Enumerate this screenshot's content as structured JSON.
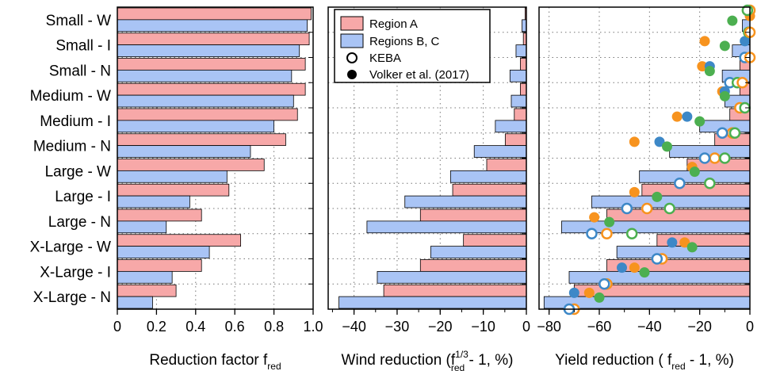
{
  "categories": [
    "Small - W",
    "Small - I",
    "Small - N",
    "Medium - W",
    "Medium - I",
    "Medium - N",
    "Large - W",
    "Large - I",
    "Large - N",
    "X-Large - W",
    "X-Large - I",
    "X-Large - N"
  ],
  "colors": {
    "region_a": "#f7a8a8",
    "regions_bc": "#a9c4f5",
    "keba_orange": "#f7931e",
    "keba_blue": "#3d88c7",
    "keba_green": "#4caf50",
    "edge": "#000000",
    "grid": "#777777"
  },
  "legend": {
    "region_a": "Region A",
    "regions_bc": "Regions B, C",
    "keba": "KEBA",
    "volker": "Volker et al. (2017)"
  },
  "chart_data": [
    {
      "type": "bar",
      "orientation": "horizontal",
      "xlabel": "Reduction factor f",
      "xlabel_sub": "red",
      "xlim": [
        0,
        1.0
      ],
      "ticks": [
        0,
        0.2,
        0.4,
        0.6,
        0.8,
        1.0
      ],
      "tick_labels": [
        "0",
        "0.2",
        "0.4",
        "0.6",
        "0.8",
        "1.0"
      ],
      "series": [
        {
          "name": "Region A",
          "values": [
            0.99,
            0.98,
            0.96,
            0.96,
            0.92,
            0.86,
            0.75,
            0.57,
            0.43,
            0.63,
            0.43,
            0.3
          ]
        },
        {
          "name": "Regions B, C",
          "values": [
            0.97,
            0.93,
            0.89,
            0.9,
            0.8,
            0.68,
            0.56,
            0.37,
            0.25,
            0.47,
            0.28,
            0.18
          ]
        }
      ]
    },
    {
      "type": "bar",
      "orientation": "horizontal",
      "xlabel": "Wind reduction (f",
      "xlabel_sup": "1/3",
      "xlabel_sub": "red",
      "xlabel_tail": " - 1, %)",
      "xlim": [
        -46,
        0
      ],
      "ticks": [
        -40,
        -30,
        -20,
        -10,
        0
      ],
      "tick_labels": [
        "−40",
        "−30",
        "−20",
        "−10",
        "0"
      ],
      "series": [
        {
          "name": "Region A",
          "values": [
            -0.3,
            -0.7,
            -1.4,
            -1.4,
            -2.8,
            -4.9,
            -9.2,
            -17.1,
            -24.6,
            -14.6,
            -24.6,
            -33.1
          ]
        },
        {
          "name": "Regions B, C",
          "values": [
            -1.0,
            -2.4,
            -3.8,
            -3.5,
            -7.2,
            -12.1,
            -17.6,
            -28.2,
            -37.0,
            -22.2,
            -34.6,
            -43.5
          ]
        }
      ]
    },
    {
      "type": "bar",
      "orientation": "horizontal",
      "xlabel": "Yield reduction ( f",
      "xlabel_sub": "red",
      "xlabel_tail": " - 1, %)",
      "xlim": [
        -84,
        0
      ],
      "ticks": [
        -80,
        -60,
        -40,
        -20,
        0
      ],
      "tick_labels": [
        "−80",
        "−60",
        "−40",
        "−20",
        "0"
      ],
      "series": [
        {
          "name": "Region A",
          "values": [
            -1,
            -2,
            -4,
            -4,
            -8,
            -14,
            -25,
            -43,
            -57,
            -37,
            -57,
            -70
          ]
        },
        {
          "name": "Regions B, C",
          "values": [
            -3,
            -7,
            -11,
            -10,
            -20,
            -32,
            -44,
            -63,
            -75,
            -53,
            -72,
            -82
          ]
        }
      ],
      "keba": [
        {
          "row": 0,
          "value": 0,
          "color": "orange"
        },
        {
          "row": 0,
          "value": -1,
          "color": "green"
        },
        {
          "row": 1,
          "value": -0.5,
          "color": "green"
        },
        {
          "row": 1,
          "value": 0,
          "color": "orange"
        },
        {
          "row": 2,
          "value": -2,
          "color": "blue"
        },
        {
          "row": 2,
          "value": 0,
          "color": "orange"
        },
        {
          "row": 3,
          "value": -8,
          "color": "blue"
        },
        {
          "row": 3,
          "value": -5,
          "color": "green"
        },
        {
          "row": 3,
          "value": -3,
          "color": "orange"
        },
        {
          "row": 4,
          "value": -4,
          "color": "orange"
        },
        {
          "row": 4,
          "value": -2,
          "color": "green"
        },
        {
          "row": 5,
          "value": -7,
          "color": "orange"
        },
        {
          "row": 5,
          "value": -11,
          "color": "blue"
        },
        {
          "row": 5,
          "value": -6,
          "color": "green"
        },
        {
          "row": 6,
          "value": -14,
          "color": "orange"
        },
        {
          "row": 6,
          "value": -18,
          "color": "blue"
        },
        {
          "row": 6,
          "value": -10,
          "color": "green"
        },
        {
          "row": 7,
          "value": -28,
          "color": "blue"
        },
        {
          "row": 7,
          "value": -16,
          "color": "green"
        },
        {
          "row": 8,
          "value": -41,
          "color": "orange"
        },
        {
          "row": 8,
          "value": -49,
          "color": "blue"
        },
        {
          "row": 8,
          "value": -32,
          "color": "green"
        },
        {
          "row": 9,
          "value": -57,
          "color": "orange"
        },
        {
          "row": 9,
          "value": -63,
          "color": "blue"
        },
        {
          "row": 9,
          "value": -47,
          "color": "green"
        },
        {
          "row": 10,
          "value": -35,
          "color": "orange"
        },
        {
          "row": 10,
          "value": -37,
          "color": "blue"
        },
        {
          "row": 11,
          "value": -57,
          "color": "orange"
        },
        {
          "row": 11,
          "value": -58,
          "color": "blue"
        },
        {
          "row": 12,
          "value": -70,
          "color": "orange"
        },
        {
          "row": 12,
          "value": -72,
          "color": "blue"
        }
      ],
      "volker": [
        {
          "row": 0,
          "value": 0,
          "color": "orange"
        },
        {
          "row": 0,
          "value": -7,
          "color": "green"
        },
        {
          "row": 1,
          "value": -18,
          "color": "orange"
        },
        {
          "row": 1,
          "value": -2,
          "color": "blue"
        },
        {
          "row": 1,
          "value": -10,
          "color": "green"
        },
        {
          "row": 2,
          "value": -19,
          "color": "orange"
        },
        {
          "row": 2,
          "value": -16,
          "color": "blue"
        },
        {
          "row": 2,
          "value": -16,
          "color": "green"
        },
        {
          "row": 3,
          "value": -11,
          "color": "orange"
        },
        {
          "row": 3,
          "value": -10,
          "color": "blue"
        },
        {
          "row": 3,
          "value": -10,
          "color": "green"
        },
        {
          "row": 4,
          "value": -29,
          "color": "orange"
        },
        {
          "row": 4,
          "value": -25,
          "color": "blue"
        },
        {
          "row": 4,
          "value": -20,
          "color": "green"
        },
        {
          "row": 5,
          "value": -46,
          "color": "orange"
        },
        {
          "row": 5,
          "value": -36,
          "color": "blue"
        },
        {
          "row": 5,
          "value": -33,
          "color": "green"
        },
        {
          "row": 6,
          "value": -23,
          "color": "orange"
        },
        {
          "row": 6,
          "value": -22,
          "color": "green"
        },
        {
          "row": 7,
          "value": -46,
          "color": "orange"
        },
        {
          "row": 7,
          "value": -37,
          "color": "green"
        },
        {
          "row": 8,
          "value": -62,
          "color": "orange"
        },
        {
          "row": 8,
          "value": -56,
          "color": "green"
        },
        {
          "row": 9,
          "value": -26,
          "color": "orange"
        },
        {
          "row": 9,
          "value": -31,
          "color": "blue"
        },
        {
          "row": 9,
          "value": -23,
          "color": "green"
        },
        {
          "row": 10,
          "value": -46,
          "color": "orange"
        },
        {
          "row": 10,
          "value": -51,
          "color": "blue"
        },
        {
          "row": 10,
          "value": -42,
          "color": "green"
        },
        {
          "row": 11,
          "value": -64,
          "color": "orange"
        },
        {
          "row": 11,
          "value": -70,
          "color": "blue"
        },
        {
          "row": 11,
          "value": -60,
          "color": "green"
        }
      ]
    }
  ]
}
